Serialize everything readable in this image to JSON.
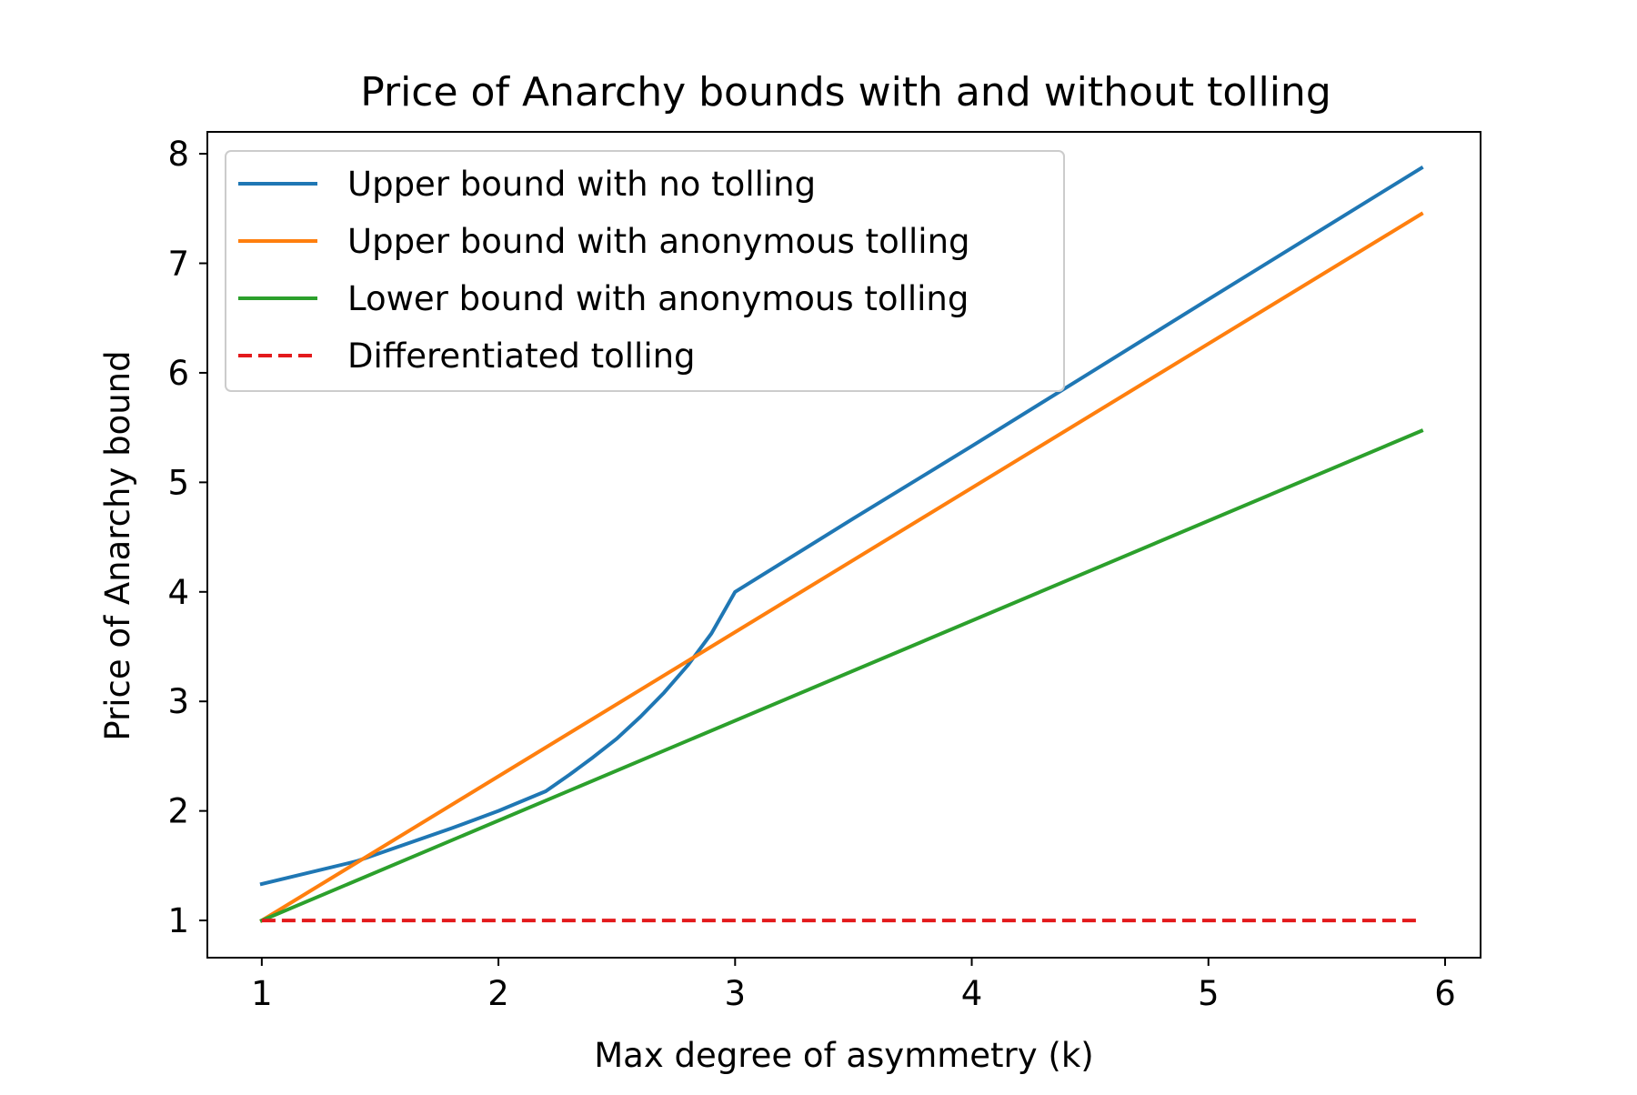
{
  "chart_data": {
    "type": "line",
    "title": "Price of Anarchy bounds with and without tolling",
    "xlabel": "Max degree of asymmetry (k)",
    "ylabel": "Price of Anarchy bound",
    "xlim": [
      0.77,
      6.15
    ],
    "ylim": [
      0.66,
      8.2
    ],
    "xticks": [
      1,
      2,
      3,
      4,
      5,
      6
    ],
    "yticks": [
      1,
      2,
      3,
      4,
      5,
      6,
      7,
      8
    ],
    "grid": false,
    "legend_position": "upper left",
    "series": [
      {
        "name": "Upper bound with no tolling",
        "color": "#1f77b4",
        "dash": "solid",
        "points": [
          [
            1.0,
            1.333
          ],
          [
            1.4,
            1.54
          ],
          [
            1.8,
            1.84
          ],
          [
            2.0,
            2.0
          ],
          [
            2.2,
            2.18
          ],
          [
            2.3,
            2.33
          ],
          [
            2.4,
            2.49
          ],
          [
            2.5,
            2.66
          ],
          [
            2.6,
            2.86
          ],
          [
            2.7,
            3.08
          ],
          [
            2.8,
            3.33
          ],
          [
            2.9,
            3.62
          ],
          [
            3.0,
            4.0
          ],
          [
            3.5,
            4.67
          ],
          [
            4.0,
            5.33
          ],
          [
            4.5,
            6.0
          ],
          [
            5.0,
            6.67
          ],
          [
            5.9,
            7.87
          ]
        ]
      },
      {
        "name": "Upper bound with anonymous tolling",
        "color": "#ff7f0e",
        "dash": "solid",
        "points": [
          [
            1.0,
            1.0
          ],
          [
            5.9,
            7.45
          ]
        ]
      },
      {
        "name": "Lower bound with anonymous tolling",
        "color": "#2ca02c",
        "dash": "solid",
        "points": [
          [
            1.0,
            1.0
          ],
          [
            5.9,
            5.47
          ]
        ]
      },
      {
        "name": "Differentiated tolling",
        "color": "#e31a1c",
        "dash": "dashed",
        "points": [
          [
            1.0,
            1.0
          ],
          [
            5.9,
            1.0
          ]
        ]
      }
    ]
  }
}
